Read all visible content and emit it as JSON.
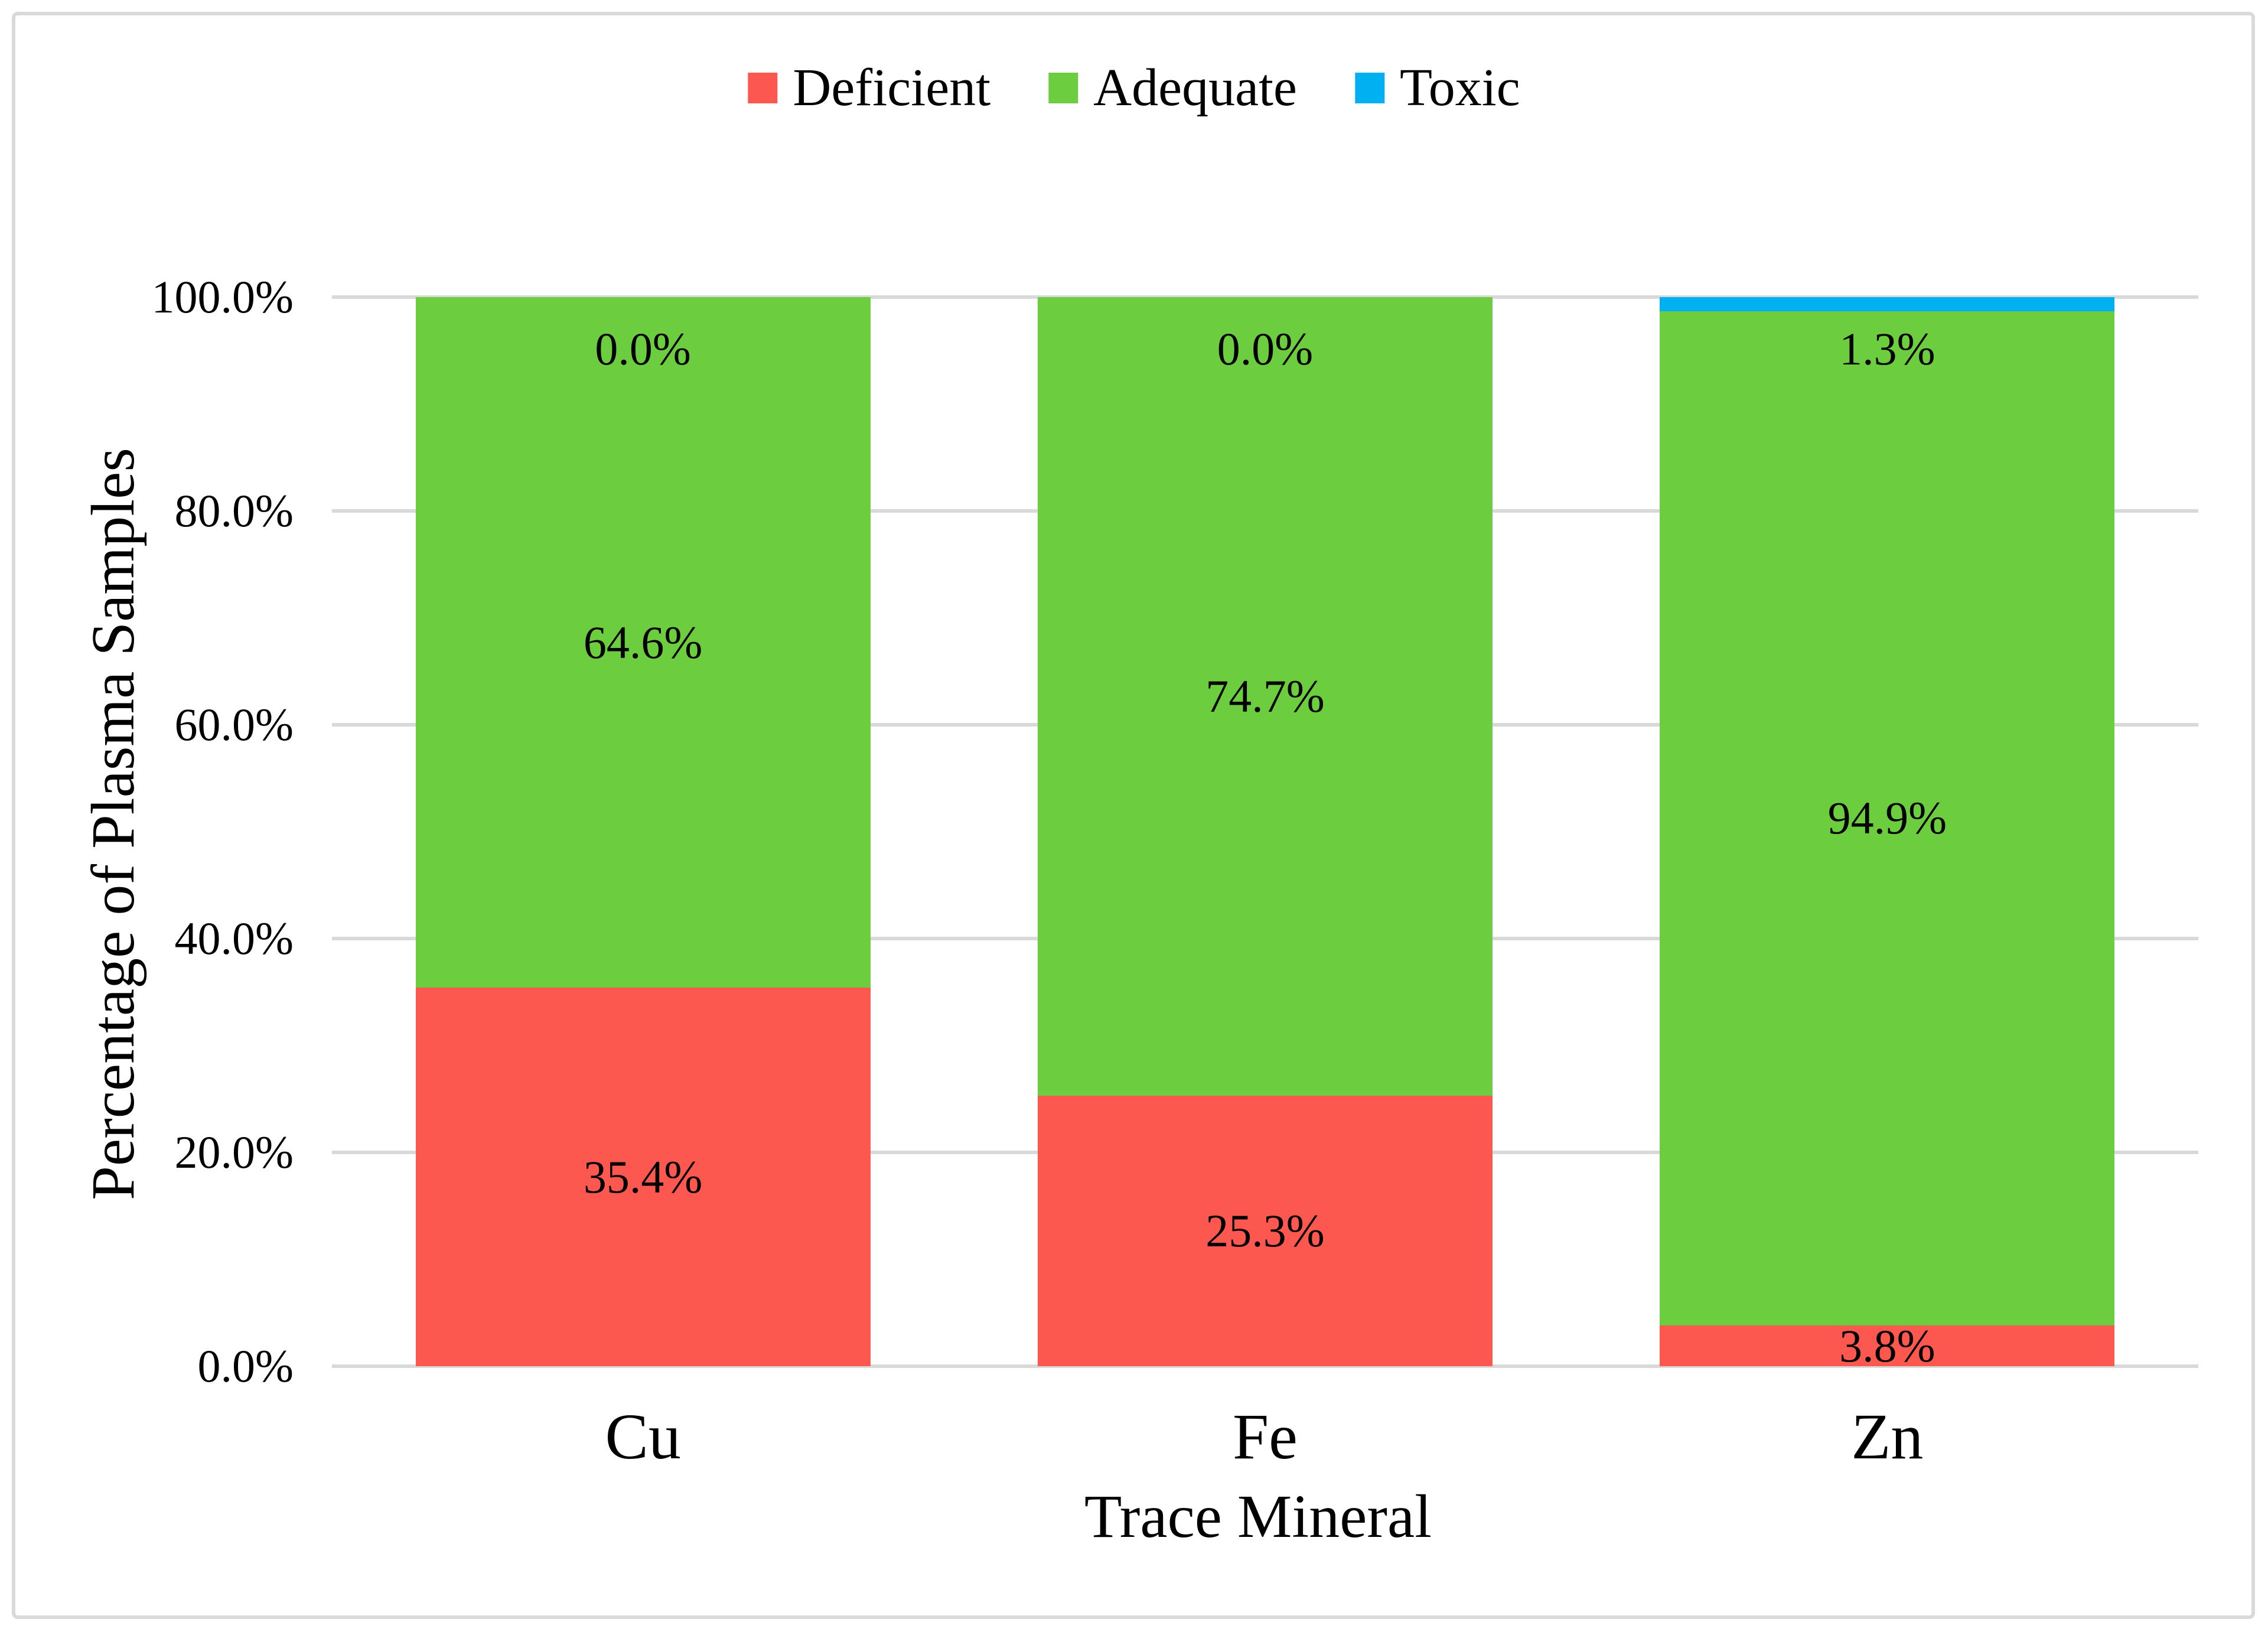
{
  "chart_data": {
    "type": "bar",
    "stacked": true,
    "percent_stacked": true,
    "title": "",
    "xlabel": "Trace Mineral",
    "ylabel": "Percentage of Plasma Samples",
    "categories": [
      "Cu",
      "Fe",
      "Zn"
    ],
    "series": [
      {
        "name": "Deficient",
        "color": "#FD5850",
        "values": [
          35.4,
          25.3,
          3.8
        ],
        "labels": [
          "35.4%",
          "25.3%",
          "3.8%"
        ]
      },
      {
        "name": "Adequate",
        "color": "#6CCD3E",
        "values": [
          64.6,
          74.7,
          94.9
        ],
        "labels": [
          "64.6%",
          "74.7%",
          "94.9%"
        ]
      },
      {
        "name": "Toxic",
        "color": "#00B0F0",
        "values": [
          0.0,
          0.0,
          1.3
        ],
        "labels": [
          "0.0%",
          "0.0%",
          "1.3%"
        ]
      }
    ],
    "y_ticks": [
      "0.0%",
      "20.0%",
      "40.0%",
      "60.0%",
      "80.0%",
      "100.0%"
    ],
    "ylim": [
      0,
      100
    ],
    "grid": true,
    "gridline_color": "#D9D9D9",
    "border_color": "#D9D9D9",
    "legend_position": "top"
  },
  "axis": {
    "y_title": "Percentage of Plasma Samples",
    "x_title": "Trace Mineral"
  }
}
